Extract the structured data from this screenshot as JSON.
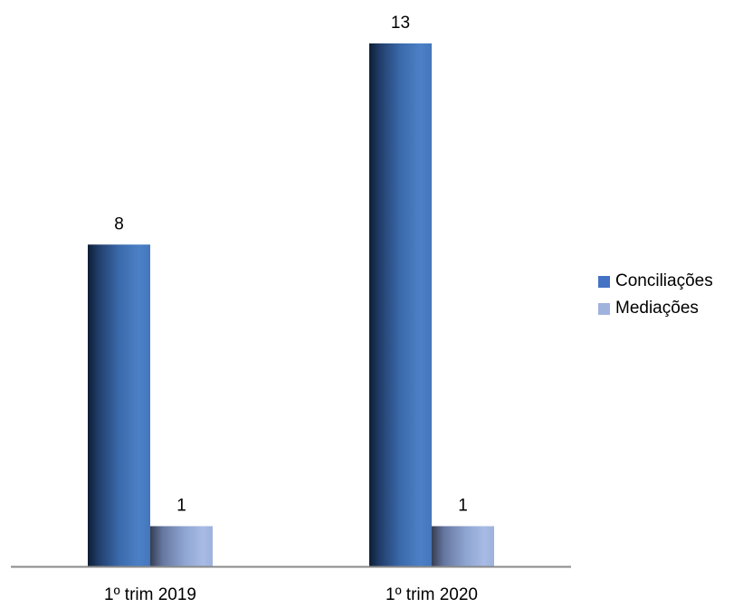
{
  "chart_data": {
    "type": "bar",
    "categories": [
      "1º trim 2019",
      "1º trim 2020"
    ],
    "series": [
      {
        "name": "Conciliações",
        "values": [
          8,
          13
        ]
      },
      {
        "name": "Mediações",
        "values": [
          1,
          1
        ]
      }
    ],
    "ylim": [
      0,
      13
    ],
    "grid": false,
    "legend_position": "right",
    "colors": {
      "series_0": "#4472c4",
      "series_1": "#9fb3dd",
      "axis": "#8a8a8a"
    }
  }
}
